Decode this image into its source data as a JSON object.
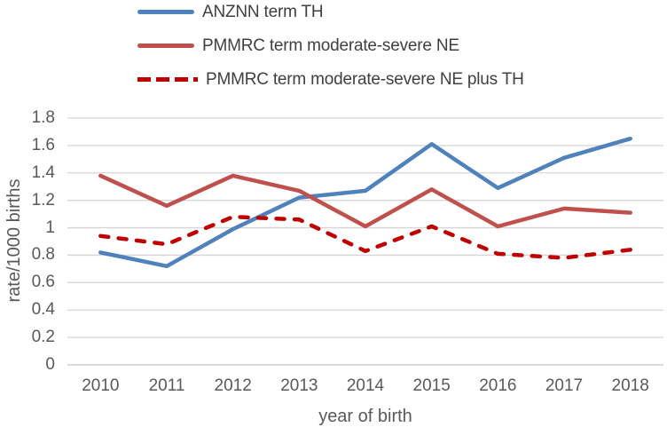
{
  "figure": {
    "background": "#ffffff",
    "text_color": "#595959",
    "legend_text_color": "#404040",
    "gridline_color": "#d6d6d6",
    "zero_line_color": "#c3c3c3"
  },
  "chart_data": {
    "type": "line",
    "title": "",
    "xlabel": "year of birth",
    "ylabel": "rate/1000 births",
    "categories": [
      "2010",
      "2011",
      "2012",
      "2013",
      "2014",
      "2015",
      "2016",
      "2017",
      "2018"
    ],
    "series": [
      {
        "name": "ANZNN term TH",
        "color": "#4f81bd",
        "dash": "solid",
        "values": [
          0.82,
          0.72,
          0.99,
          1.22,
          1.27,
          1.61,
          1.29,
          1.51,
          1.65
        ]
      },
      {
        "name": "PMMRC term moderate-severe NE",
        "color": "#c0504d",
        "dash": "solid",
        "values": [
          1.38,
          1.16,
          1.38,
          1.27,
          1.01,
          1.28,
          1.01,
          1.14,
          1.11
        ]
      },
      {
        "name": "PMMRC term moderate-severe NE plus TH",
        "color": "#c00000",
        "dash": "dashed",
        "values": [
          0.94,
          0.88,
          1.08,
          1.06,
          0.83,
          1.01,
          0.81,
          0.78,
          0.84
        ]
      }
    ],
    "ylim": [
      0,
      1.8
    ],
    "ytick_step": 0.2,
    "grid": true,
    "legend_position": "top-left"
  }
}
